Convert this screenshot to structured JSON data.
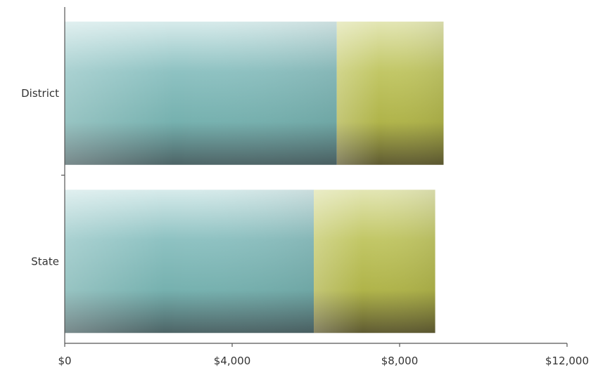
{
  "chart_data": {
    "type": "bar",
    "orientation": "horizontal",
    "stacked": true,
    "title": "",
    "xlabel": "",
    "ylabel": "",
    "categories": [
      "District",
      "State"
    ],
    "series": [
      {
        "values": [
          6500,
          5950
        ],
        "color": "#7fb8b8"
      },
      {
        "values": [
          2550,
          2900
        ],
        "color": "#b6bd50"
      }
    ],
    "xlim": [
      0,
      12000
    ],
    "xticks": [
      {
        "value": 0,
        "label": "$0"
      },
      {
        "value": 4000,
        "label": "$4,000"
      },
      {
        "value": 8000,
        "label": "$8,000"
      },
      {
        "value": 12000,
        "label": "$12,000"
      }
    ],
    "grid": false,
    "legend": "none"
  }
}
